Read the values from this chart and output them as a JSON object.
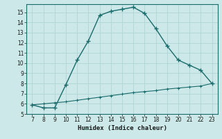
{
  "xlabel": "Humidex (Indice chaleur)",
  "background_color": "#cce8e8",
  "line_color": "#1a6b6b",
  "grid_color": "#b0d4d4",
  "xlim": [
    6.5,
    23.5
  ],
  "ylim": [
    5,
    15.8
  ],
  "xticks": [
    7,
    8,
    9,
    10,
    11,
    12,
    13,
    14,
    15,
    16,
    17,
    18,
    19,
    20,
    21,
    22,
    23
  ],
  "yticks": [
    5,
    6,
    7,
    8,
    9,
    10,
    11,
    12,
    13,
    14,
    15
  ],
  "curve1_x": [
    7,
    8,
    9,
    10,
    11,
    12,
    13,
    14,
    15,
    16,
    17,
    18,
    19,
    20,
    21,
    22,
    23
  ],
  "curve1_y": [
    5.9,
    5.6,
    5.6,
    7.9,
    10.3,
    12.2,
    14.7,
    15.1,
    15.3,
    15.5,
    14.9,
    13.4,
    11.7,
    10.3,
    9.8,
    9.3,
    8.0
  ],
  "curve2_x": [
    7,
    8,
    9,
    10,
    11,
    12,
    13,
    14,
    15,
    16,
    17,
    18,
    19,
    20,
    21,
    22,
    23
  ],
  "curve2_y": [
    5.9,
    6.0,
    6.1,
    6.2,
    6.35,
    6.5,
    6.65,
    6.8,
    6.95,
    7.1,
    7.2,
    7.3,
    7.45,
    7.55,
    7.65,
    7.75,
    8.0
  ]
}
